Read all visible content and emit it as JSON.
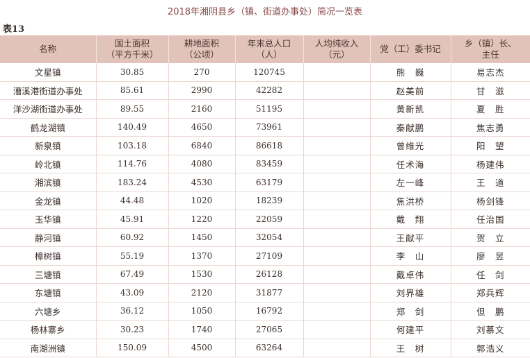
{
  "title": "2018年湘阴县乡（镇、街道办事处）简况一览表",
  "table_label": "表13",
  "headers": {
    "name": "名称",
    "area_l1": "国土面积",
    "area_l2": "（平方千米）",
    "farmland_l1": "耕地面积",
    "farmland_l2": "（公顷）",
    "population_l1": "年末总人口",
    "population_l2": "（人）",
    "income_l1": "人均纯收入",
    "income_l2": "（元）",
    "secretary": "党（工）委书记",
    "head_l1": "乡（镇）长、",
    "head_l2": "主任"
  },
  "rows": [
    {
      "name": "文星镇",
      "area": "30.85",
      "farmland": "270",
      "population": "120745",
      "income": "",
      "secretary": "熊　巍",
      "head": "易志杰"
    },
    {
      "name": "漕溪港街道办事处",
      "area": "85.61",
      "farmland": "2990",
      "population": "42282",
      "income": "",
      "secretary": "赵美前",
      "head": "甘　滋"
    },
    {
      "name": "洋沙湖街道办事处",
      "area": "89.55",
      "farmland": "2160",
      "population": "51195",
      "income": "",
      "secretary": "黄新凯",
      "head": "夏　胜"
    },
    {
      "name": "鹤龙湖镇",
      "area": "140.49",
      "farmland": "4650",
      "population": "73961",
      "income": "",
      "secretary": "秦献鹏",
      "head": "焦志勇"
    },
    {
      "name": "新泉镇",
      "area": "103.18",
      "farmland": "6840",
      "population": "86618",
      "income": "",
      "secretary": "曾维光",
      "head": "阳　望"
    },
    {
      "name": "岭北镇",
      "area": "114.76",
      "farmland": "4080",
      "population": "83459",
      "income": "",
      "secretary": "任术海",
      "head": "杨建伟"
    },
    {
      "name": "湘滨镇",
      "area": "183.24",
      "farmland": "4530",
      "population": "63179",
      "income": "",
      "secretary": "左一峰",
      "head": "王　道"
    },
    {
      "name": "金龙镇",
      "area": "44.48",
      "farmland": "1020",
      "population": "18239",
      "income": "",
      "secretary": "焦洪桥",
      "head": "杨剑锋"
    },
    {
      "name": "玉华镇",
      "area": "45.91",
      "farmland": "1220",
      "population": "22059",
      "income": "",
      "secretary": "戴　翔",
      "head": "任治国"
    },
    {
      "name": "静河镇",
      "area": "60.92",
      "farmland": "1450",
      "population": "32054",
      "income": "",
      "secretary": "王献平",
      "head": "贺　立"
    },
    {
      "name": "樟树镇",
      "area": "55.19",
      "farmland": "1370",
      "population": "27109",
      "income": "",
      "secretary": "李　山",
      "head": "廖　昱"
    },
    {
      "name": "三塘镇",
      "area": "67.49",
      "farmland": "1530",
      "population": "26128",
      "income": "",
      "secretary": "戴卓伟",
      "head": "任　剑"
    },
    {
      "name": "东塘镇",
      "area": "43.09",
      "farmland": "2120",
      "population": "31877",
      "income": "",
      "secretary": "刘界雄",
      "head": "郑兵辉"
    },
    {
      "name": "六塘乡",
      "area": "36.12",
      "farmland": "1050",
      "population": "16792",
      "income": "",
      "secretary": "郑　剑",
      "head": "但　鹏"
    },
    {
      "name": "杨林寨乡",
      "area": "30.23",
      "farmland": "1740",
      "population": "27065",
      "income": "",
      "secretary": "何建平",
      "head": "刘慕文"
    },
    {
      "name": "南湖洲镇",
      "area": "150.09",
      "farmland": "4500",
      "population": "63264",
      "income": "",
      "secretary": "王　树",
      "head": "郭浩义"
    }
  ]
}
